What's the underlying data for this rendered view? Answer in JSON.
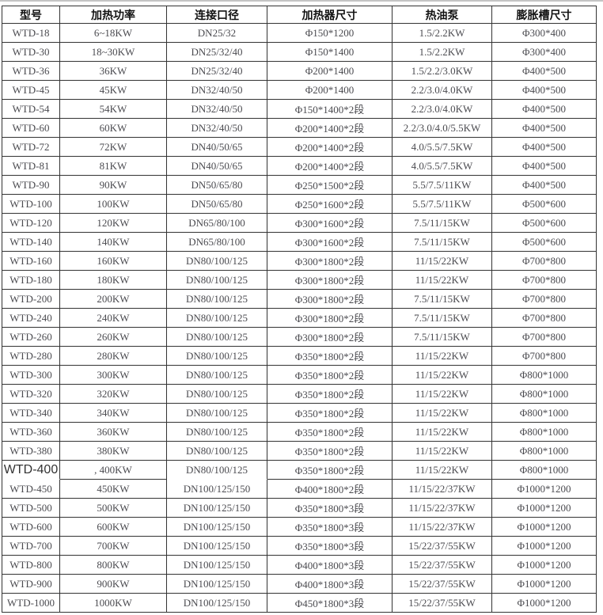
{
  "table": {
    "headers": [
      "型号",
      "加热功率",
      "连接口径",
      "加热器尺寸",
      "热油泵",
      "膨胀槽尺寸"
    ],
    "rows": [
      [
        "WTD-18",
        "6~18KW",
        "DN25/32",
        "Φ150*1200",
        "1.5/2.2KW",
        "Φ300*400"
      ],
      [
        "WTD-30",
        "18~30KW",
        "DN25/32/40",
        "Φ150*1400",
        "1.5/2.2KW",
        "Φ300*400"
      ],
      [
        "WTD-36",
        "36KW",
        "DN25/32/40",
        "Φ200*1400",
        "1.5/2.2/3.0KW",
        "Φ400*500"
      ],
      [
        "WTD-45",
        "45KW",
        "DN32/40/50",
        "Φ200*1400",
        "2.2/3.0/4.0KW",
        "Φ400*500"
      ],
      [
        "WTD-54",
        "54KW",
        "DN32/40/50",
        "Φ150*1400*2段",
        "2.2/3.0/4.0KW",
        "Φ400*500"
      ],
      [
        "WTD-60",
        "60KW",
        "DN32/40/50",
        "Φ200*1400*2段",
        "2.2/3.0/4.0/5.5KW",
        "Φ400*500"
      ],
      [
        "WTD-72",
        "72KW",
        "DN40/50/65",
        "Φ200*1400*2段",
        "4.0/5.5/7.5KW",
        "Φ400*500"
      ],
      [
        "WTD-81",
        "81KW",
        "DN40/50/65",
        "Φ200*1400*2段",
        "4.0/5.5/7.5KW",
        "Φ400*500"
      ],
      [
        "WTD-90",
        "90KW",
        "DN50/65/80",
        "Φ250*1500*2段",
        "5.5/7.5/11KW",
        "Φ400*500"
      ],
      [
        "WTD-100",
        "100KW",
        "DN50/65/80",
        "Φ250*1600*2段",
        "5.5/7.5/11KW",
        "Φ500*600"
      ],
      [
        "WTD-120",
        "120KW",
        "DN65/80/100",
        "Φ300*1600*2段",
        "7.5/11/15KW",
        "Φ500*600"
      ],
      [
        "WTD-140",
        "140KW",
        "DN65/80/100",
        "Φ300*1600*2段",
        "7.5/11/15KW",
        "Φ500*600"
      ],
      [
        "WTD-160",
        "160KW",
        "DN80/100/125",
        "Φ300*1800*2段",
        "11/15/22KW",
        "Φ700*800"
      ],
      [
        "WTD-180",
        "180KW",
        "DN80/100/125",
        "Φ300*1800*2段",
        "11/15/22KW",
        "Φ700*800"
      ],
      [
        "WTD-200",
        "200KW",
        "DN80/100/125",
        "Φ300*1800*2段",
        "7.5/11/15KW",
        "Φ700*800"
      ],
      [
        "WTD-240",
        "240KW",
        "DN80/100/125",
        "Φ300*1800*2段",
        "7.5/11/15KW",
        "Φ700*800"
      ],
      [
        "WTD-260",
        "260KW",
        "DN80/100/125",
        "Φ300*1800*2段",
        "7.5/11/15KW",
        "Φ700*800"
      ],
      [
        "WTD-280",
        "280KW",
        "DN80/100/125",
        "Φ350*1800*2段",
        "11/15/22KW",
        "Φ700*800"
      ],
      [
        "WTD-300",
        "300KW",
        "DN80/100/125",
        "Φ350*1800*2段",
        "11/15/22KW",
        "Φ800*1000"
      ],
      [
        "WTD-320",
        "320KW",
        "DN80/100/125",
        "Φ350*1800*2段",
        "11/15/22KW",
        "Φ800*1000"
      ],
      [
        "WTD-340",
        "340KW",
        "DN80/100/125",
        "Φ350*1800*2段",
        "11/15/22KW",
        "Φ800*1000"
      ],
      [
        "WTD-360",
        "360KW",
        "DN80/100/125",
        "Φ350*1800*2段",
        "11/15/22KW",
        "Φ800*1000"
      ],
      [
        "WTD-380",
        "380KW",
        "DN80/100/125",
        "Φ350*1800*2段",
        "11/15/22KW",
        "Φ800*1000"
      ],
      [
        "WTD-400",
        ", 400KW",
        "DN80/100/125",
        "Φ350*1800*2段",
        "11/15/22KW",
        "Φ800*1000"
      ],
      [
        "WTD-450",
        "450KW",
        "DN100/125/150",
        "Φ400*1800*2段",
        "11/15/22/37KW",
        "Φ1000*1200"
      ],
      [
        "WTD-500",
        "500KW",
        "DN100/125/150",
        "Φ350*1800*3段",
        "11/15/22/37KW",
        "Φ1000*1200"
      ],
      [
        "WTD-600",
        "600KW",
        "DN100/125/150",
        "Φ350*1800*3段",
        "11/15/22/37KW",
        "Φ1000*1200"
      ],
      [
        "WTD-700",
        "700KW",
        "DN100/125/150",
        "Φ350*1800*3段",
        "15/22/37/55KW",
        "Φ1000*1200"
      ],
      [
        "WTD-800",
        "800KW",
        "DN100/125/150",
        "Φ400*1800*3段",
        "15/22/37/55KW",
        "Φ1000*1200"
      ],
      [
        "WTD-900",
        "900KW",
        "DN100/125/150",
        "Φ400*1800*3段",
        "15/22/37/55KW",
        "Φ1000*1200"
      ],
      [
        "WTD-1000",
        "1000KW",
        "DN100/125/150",
        "Φ450*1800*3段",
        "15/22/37/55KW",
        "Φ1000*1200"
      ]
    ],
    "anomaly": {
      "row_model": "WTD-400",
      "transparent_bottom_border_columns": [
        0,
        2
      ],
      "large_font_column": 0
    },
    "colors": {
      "border": "#333333",
      "header_text": "#111111",
      "body_text": "#4b4b50",
      "top_divider": "#c4c4c4",
      "model_large_text": "#333333"
    }
  }
}
